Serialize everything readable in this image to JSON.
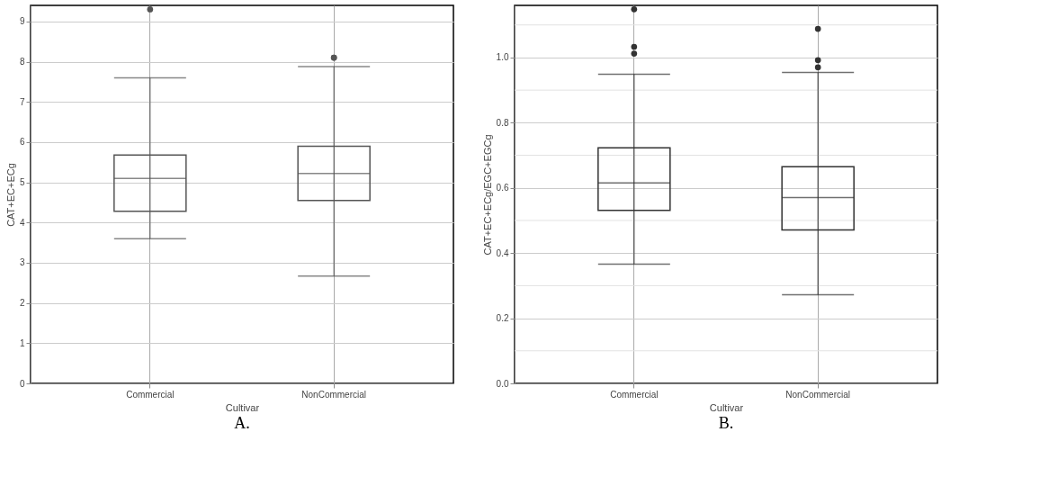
{
  "chart_data": [
    {
      "type": "box",
      "xlabel": "Cultivar",
      "ylabel": "CAT+EC+ECg",
      "categories": [
        "Commercial",
        "NonCommercial"
      ],
      "ylim": [
        0,
        9.4
      ],
      "yticks": [
        0,
        1,
        2,
        3,
        4,
        5,
        6,
        7,
        8,
        9
      ],
      "grid": true,
      "annotations": [
        "A."
      ],
      "series": [
        {
          "color": "#555555",
          "boxes": [
            {
              "low": 3.6,
              "q1": 4.28,
              "median": 5.1,
              "q3": 5.68,
              "high": 7.6,
              "outliers": [
                9.3
              ]
            },
            {
              "low": 2.67,
              "q1": 4.55,
              "median": 5.22,
              "q3": 5.9,
              "high": 7.88,
              "outliers": [
                8.1,
                8.1
              ]
            }
          ]
        }
      ]
    },
    {
      "type": "box",
      "xlabel": "Cultivar",
      "ylabel": "CAT+EC+ECg/EGC+EGCg",
      "categories": [
        "Commercial",
        "NonCommercial"
      ],
      "ylim": [
        0,
        1.16
      ],
      "yticks": [
        {
          "value": 0,
          "label": "0.0"
        },
        {
          "value": 0.1,
          "label": null
        },
        0.2,
        {
          "value": 0.3,
          "label": null
        },
        0.4,
        {
          "value": 0.5,
          "label": null
        },
        0.6,
        {
          "value": 0.7,
          "label": null
        },
        0.8,
        {
          "value": 0.9,
          "label": null
        },
        {
          "value": 1,
          "label": "1.0"
        },
        {
          "value": 1.1,
          "label": null
        }
      ],
      "grid": true,
      "annotations": [
        "B."
      ],
      "series": [
        {
          "color": "#333333",
          "boxes": [
            {
              "low": 0.366,
              "q1": 0.531,
              "median": 0.615,
              "q3": 0.723,
              "high": 0.949,
              "outliers": [
                1.148,
                1.033,
                1.012
              ]
            },
            {
              "low": 0.272,
              "q1": 0.471,
              "median": 0.57,
              "q3": 0.665,
              "high": 0.954,
              "outliers": [
                1.088,
                0.992,
                0.97
              ]
            }
          ]
        }
      ]
    }
  ]
}
